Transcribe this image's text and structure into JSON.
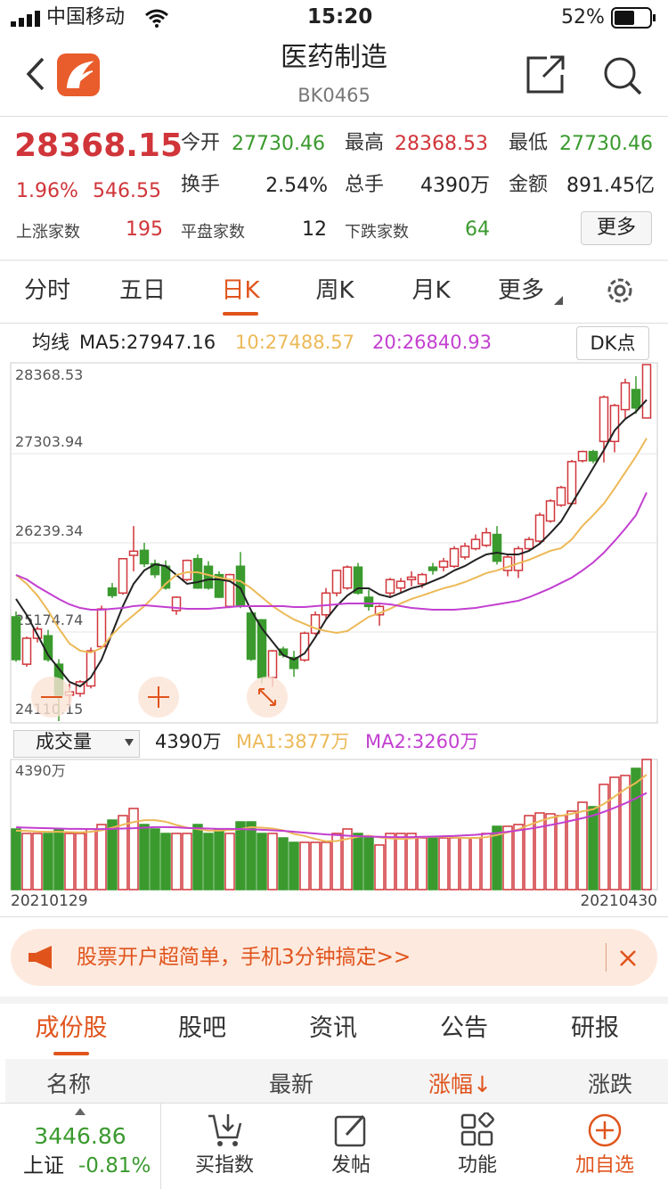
{
  "status": {
    "carrier": "中国移动",
    "time": "15:20",
    "battery": "52%"
  },
  "header": {
    "title": "医药制造",
    "code": "BK0465"
  },
  "quote": {
    "price": "28368.15",
    "change_pct": "1.96%",
    "change": "546.55",
    "fields": [
      {
        "label": "今开",
        "value": "27730.46"
      },
      {
        "label": "最高",
        "value": "28368.53"
      },
      {
        "label": "最低",
        "value": "27730.46"
      },
      {
        "label": "换手",
        "value": "2.54%"
      },
      {
        "label": "总手",
        "value": "4390万"
      },
      {
        "label": "金额",
        "value": "891.45亿"
      }
    ],
    "counts": [
      {
        "label": "上涨家数",
        "value": "195"
      },
      {
        "label": "平盘家数",
        "value": "12"
      },
      {
        "label": "下跌家数",
        "value": "64"
      }
    ],
    "more": "更多"
  },
  "tabs": [
    "分时",
    "五日",
    "日K",
    "周K",
    "月K",
    "更多"
  ],
  "chart_data": [
    {
      "type": "candlestick",
      "legend_label": "均线",
      "legend": [
        "MA5:27947.16",
        "10:27488.57",
        "20:26840.93"
      ],
      "button": "DK点",
      "up_color": "#d0353a",
      "down_color": "#3a9a2e",
      "ylim": [
        24110.15,
        28368.53
      ],
      "yticks": [
        28368.53,
        27303.94,
        26239.34,
        25174.74,
        24110.15
      ],
      "ohlc": [
        [
          25356,
          25420,
          24820,
          24845
        ],
        [
          24790,
          25120,
          24760,
          25100
        ],
        [
          25100,
          25240,
          25050,
          25210
        ],
        [
          25130,
          25200,
          24820,
          24845
        ],
        [
          24790,
          24850,
          24110.15,
          24420
        ],
        [
          24420,
          24560,
          24330,
          24460
        ],
        [
          24440,
          24600,
          24400,
          24580
        ],
        [
          24530,
          24990,
          24500,
          24950
        ],
        [
          25000,
          25490,
          24980,
          25450
        ],
        [
          25700,
          25760,
          25580,
          25610
        ],
        [
          25640,
          26050,
          25620,
          26050
        ],
        [
          26090,
          26440,
          25900,
          26140
        ],
        [
          26150,
          26240,
          25950,
          25990
        ],
        [
          25990,
          26040,
          25820,
          25860
        ],
        [
          25960,
          26030,
          25680,
          25700
        ],
        [
          25430,
          25600,
          25380,
          25590
        ],
        [
          25800,
          26040,
          25780,
          26030
        ],
        [
          26050,
          26100,
          25690,
          25700
        ],
        [
          25960,
          26020,
          25680,
          25700
        ],
        [
          25860,
          25900,
          25580,
          25590
        ],
        [
          25480,
          25870,
          25460,
          25860
        ],
        [
          25960,
          26130,
          25460,
          25480
        ],
        [
          25400,
          25430,
          24830,
          24850
        ],
        [
          25320,
          25330,
          24560,
          24630
        ],
        [
          24630,
          24960,
          24520,
          24950
        ],
        [
          24970,
          25000,
          24870,
          24900
        ],
        [
          24870,
          24950,
          24640,
          24740
        ],
        [
          24840,
          25180,
          24820,
          25160
        ],
        [
          25160,
          25420,
          25140,
          25380
        ],
        [
          25380,
          25700,
          25340,
          25640
        ],
        [
          25640,
          25920,
          25600,
          25910
        ],
        [
          25700,
          25970,
          25680,
          25950
        ],
        [
          25950,
          26000,
          25620,
          25640
        ],
        [
          25590,
          25680,
          25430,
          25480
        ],
        [
          25380,
          25500,
          25250,
          25480
        ],
        [
          25640,
          25820,
          25600,
          25800
        ],
        [
          25700,
          25820,
          25640,
          25780
        ],
        [
          25800,
          25900,
          25720,
          25830
        ],
        [
          25750,
          25880,
          25700,
          25860
        ],
        [
          25950,
          26000,
          25860,
          25910
        ],
        [
          25950,
          26060,
          25900,
          26020
        ],
        [
          25960,
          26200,
          25940,
          26170
        ],
        [
          26070,
          26240,
          26040,
          26200
        ],
        [
          26170,
          26340,
          26150,
          26280
        ],
        [
          26210,
          26420,
          26190,
          26360
        ],
        [
          26340,
          26440,
          25980,
          26020
        ],
        [
          25910,
          26100,
          25840,
          26070
        ],
        [
          25910,
          26200,
          25820,
          26170
        ],
        [
          26170,
          26310,
          26140,
          26280
        ],
        [
          26260,
          26600,
          26240,
          26570
        ],
        [
          26500,
          26760,
          26480,
          26740
        ],
        [
          26690,
          26920,
          26670,
          26900
        ],
        [
          26710,
          27230,
          26690,
          27210
        ],
        [
          27220,
          27340,
          27200,
          27330
        ],
        [
          27330,
          27350,
          27190,
          27220
        ],
        [
          27450,
          28000,
          27200,
          27980
        ],
        [
          27450,
          27900,
          27320,
          27880
        ],
        [
          27830,
          28200,
          27730,
          28150
        ],
        [
          28070,
          28230,
          27780,
          27850
        ],
        [
          27730.46,
          28368.53,
          27730.46,
          28368.15
        ]
      ],
      "series": [
        {
          "color": "#222222",
          "values": [
            25569,
            25377,
            25143,
            24898,
            24738,
            24579,
            24526,
            24632,
            24845,
            25164,
            25484,
            25750,
            25910,
            25984,
            25963,
            25856,
            25750,
            25771,
            25803,
            25803,
            25782,
            25697,
            25430,
            25218,
            25058,
            24898,
            24845,
            24919,
            25111,
            25324,
            25484,
            25611,
            25697,
            25697,
            25622,
            25590,
            25643,
            25697,
            25729,
            25782,
            25835,
            25910,
            25963,
            26037,
            26101,
            26122,
            26101,
            26101,
            26144,
            26229,
            26357,
            26495,
            26708,
            26921,
            27134,
            27347,
            27581,
            27719,
            27805,
            27947.16
          ]
        },
        {
          "color": "#ecb957",
          "values": [
            25856,
            25750,
            25611,
            25430,
            25218,
            25037,
            24951,
            24930,
            24983,
            25143,
            25271,
            25377,
            25484,
            25611,
            25750,
            25856,
            25888,
            25888,
            25856,
            25824,
            25803,
            25782,
            25697,
            25590,
            25484,
            25399,
            25324,
            25271,
            25218,
            25186,
            25164,
            25186,
            25271,
            25356,
            25399,
            25452,
            25516,
            25569,
            25611,
            25654,
            25697,
            25729,
            25771,
            25824,
            25878,
            25910,
            25952,
            25995,
            26037,
            26091,
            26144,
            26176,
            26282,
            26442,
            26570,
            26708,
            26889,
            27081,
            27272,
            27488.57
          ]
        },
        {
          "color": "#c23fd0",
          "values": [
            25856,
            25803,
            25718,
            25643,
            25569,
            25505,
            25462,
            25441,
            25441,
            25452,
            25462,
            25484,
            25494,
            25484,
            25473,
            25462,
            25452,
            25452,
            25452,
            25462,
            25473,
            25484,
            25484,
            25484,
            25484,
            25484,
            25473,
            25473,
            25484,
            25494,
            25505,
            25516,
            25516,
            25516,
            25516,
            25505,
            25484,
            25462,
            25452,
            25441,
            25441,
            25441,
            25452,
            25462,
            25484,
            25505,
            25526,
            25548,
            25590,
            25643,
            25697,
            25761,
            25824,
            25910,
            26005,
            26122,
            26261,
            26410,
            26570,
            26840.93
          ]
        }
      ]
    },
    {
      "type": "bar",
      "selector": "成交量",
      "current": "4390万",
      "legend": [
        "MA1:3877万",
        "MA2:3260万"
      ],
      "ylim": [
        0,
        4390
      ],
      "yticks": [
        {
          "value": 4390,
          "label": "4390万"
        }
      ],
      "x_labels": [
        "20210129",
        "20210430"
      ],
      "values": [
        2045,
        1894,
        1894,
        1894,
        2045,
        1894,
        1894,
        2045,
        2195,
        2345,
        2496,
        2736,
        2195,
        2045,
        1894,
        1894,
        1894,
        2195,
        1894,
        2045,
        1894,
        2285,
        2285,
        1894,
        1894,
        1744,
        1594,
        1594,
        1594,
        1594,
        1894,
        2045,
        1894,
        1744,
        1504,
        1894,
        1894,
        1894,
        1744,
        1744,
        1744,
        1744,
        1744,
        1744,
        1894,
        2135,
        2135,
        2195,
        2496,
        2586,
        2556,
        2496,
        2646,
        2947,
        2797,
        3548,
        3789,
        3849,
        4090,
        4390
      ],
      "series": [
        {
          "color": "#ecb957",
          "values": [
            1990,
            1980,
            1960,
            1950,
            1950,
            1940,
            1930,
            1950,
            2000,
            2090,
            2190,
            2280,
            2340,
            2340,
            2290,
            2180,
            2090,
            2040,
            1990,
            1990,
            2010,
            2040,
            2110,
            2090,
            2060,
            2000,
            1880,
            1810,
            1710,
            1630,
            1640,
            1710,
            1780,
            1820,
            1760,
            1730,
            1710,
            1730,
            1770,
            1780,
            1780,
            1760,
            1740,
            1740,
            1770,
            1840,
            1930,
            2030,
            2180,
            2310,
            2420,
            2490,
            2560,
            2640,
            2710,
            2890,
            3140,
            3390,
            3600,
            3877
          ]
        },
        {
          "color": "#c23fd0",
          "values": [
            2100,
            2090,
            2080,
            2070,
            2060,
            2050,
            2050,
            2040,
            2040,
            2050,
            2060,
            2070,
            2090,
            2110,
            2110,
            2100,
            2080,
            2070,
            2060,
            2050,
            2050,
            2040,
            2030,
            2020,
            2000,
            1980,
            1950,
            1920,
            1890,
            1860,
            1840,
            1820,
            1800,
            1790,
            1780,
            1770,
            1770,
            1770,
            1780,
            1790,
            1800,
            1810,
            1830,
            1850,
            1880,
            1910,
            1950,
            2000,
            2050,
            2110,
            2180,
            2250,
            2330,
            2410,
            2500,
            2620,
            2760,
            2910,
            3080,
            3260
          ]
        }
      ]
    }
  ],
  "banner": {
    "text": "股票开户超简单，手机3分钟搞定>>"
  },
  "sub_tabs": [
    "成份股",
    "股吧",
    "资讯",
    "公告",
    "研报"
  ],
  "table_header": [
    "名称",
    "最新",
    "涨幅↓",
    "涨跌"
  ],
  "bottom": {
    "index_value": "3446.86",
    "index_name": "上证",
    "index_pct": "-0.81%",
    "buttons": [
      "买指数",
      "发帖",
      "功能",
      "加自选"
    ]
  }
}
